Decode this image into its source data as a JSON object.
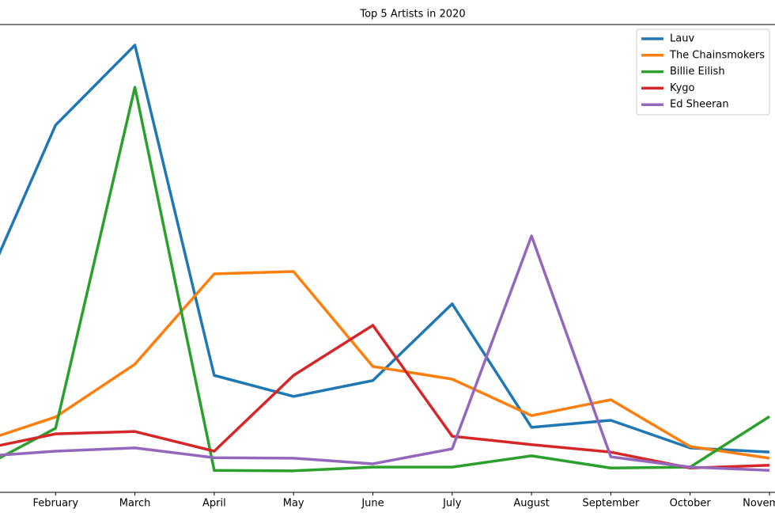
{
  "chart_data": {
    "type": "line",
    "title": "Top 5 Artists in 2020",
    "categories": [
      null,
      "February",
      "March",
      "April",
      "May",
      "June",
      "July",
      "August",
      "September",
      "October",
      "November"
    ],
    "ylim": [
      0,
      100
    ],
    "legend": "upper right",
    "series": [
      {
        "name": "Lauv",
        "color": "#1f77b4",
        "values": [
          39.8,
          78.5,
          95.6,
          25.0,
          20.5,
          23.9,
          40.3,
          13.9,
          15.4,
          9.5,
          8.6
        ]
      },
      {
        "name": "The Chainsmokers",
        "color": "#ff7f0e",
        "values": [
          10.5,
          16.1,
          27.4,
          46.7,
          47.2,
          26.9,
          24.2,
          16.4,
          19.8,
          9.8,
          7.3
        ]
      },
      {
        "name": "Billie Eilish",
        "color": "#2ca02c",
        "values": [
          4.7,
          13.7,
          86.6,
          4.7,
          4.6,
          5.4,
          5.4,
          7.8,
          5.2,
          5.4,
          16.2
        ]
      },
      {
        "name": "Kygo",
        "color": "#d62728",
        "values": [
          9.0,
          12.5,
          13.0,
          8.8,
          25.0,
          35.7,
          12.0,
          10.2,
          8.6,
          5.2,
          5.8
        ]
      },
      {
        "name": "Ed Sheeran",
        "color": "#9467bd",
        "values": [
          7.6,
          8.8,
          9.5,
          7.4,
          7.3,
          6.1,
          9.3,
          54.8,
          7.6,
          5.4,
          4.7
        ]
      }
    ]
  }
}
